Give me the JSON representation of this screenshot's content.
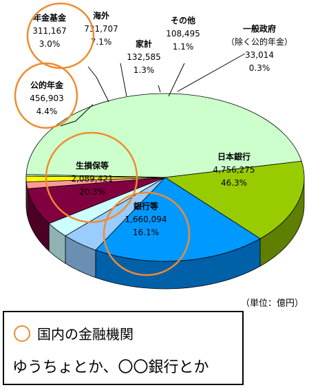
{
  "chart_data": {
    "type": "pie",
    "unit_label": "（単位：億円）",
    "slices": [
      {
        "name": "日本銀行",
        "value": "4,756,275",
        "percent": "46.3%",
        "color": "#ccffcc",
        "side": "#8fb38f",
        "highlight": false,
        "lines": [
          "日本銀行",
          "4,756,275",
          "46.3%"
        ]
      },
      {
        "name": "銀行等",
        "value": "1,660,094",
        "percent": "16.1%",
        "color": "#99cc00",
        "side": "#5f7f00",
        "highlight": true,
        "lines": [
          "銀行等",
          "1,660,094",
          "16.1%"
        ]
      },
      {
        "name": "生損保等",
        "value": "2,089,421",
        "percent": "20.3%",
        "color": "#0099ff",
        "side": "#0060a8",
        "highlight": true,
        "lines": [
          "生損保等",
          "2,089,421",
          "20.3%"
        ]
      },
      {
        "name": "公的年金",
        "value": "456,903",
        "percent": "4.4%",
        "color": "#99ccff",
        "side": "#6a8fb3",
        "highlight": true,
        "lines": [
          "公的年金",
          "456,903",
          "4.4%"
        ]
      },
      {
        "name": "年金基金",
        "value": "311,167",
        "percent": "3.0%",
        "color": "#ccffff",
        "side": "#8fb3b3",
        "highlight": true,
        "lines": [
          "年金基金",
          "311,167",
          "3.0%"
        ]
      },
      {
        "name": "海外",
        "value": "731,707",
        "percent": "7.1%",
        "color": "#800040",
        "side": "#4d0026",
        "highlight": false,
        "lines": [
          "海外",
          "731,707",
          "7.1%"
        ]
      },
      {
        "name": "家計",
        "value": "132,585",
        "percent": "1.3%",
        "color": "#ff9999",
        "side": "#b36b6b",
        "highlight": false,
        "lines": [
          "家計",
          "132,585",
          "1.3%"
        ]
      },
      {
        "name": "その他",
        "value": "108,495",
        "percent": "1.1%",
        "color": "#ffff00",
        "side": "#b3b300",
        "highlight": false,
        "lines": [
          "その他",
          "108,495",
          "1.1%"
        ]
      },
      {
        "name": "一般政府（除く公的年金）",
        "value": "33,014",
        "percent": "0.3%",
        "color": "#ccffcc",
        "side": "#8fb38f",
        "highlight": false,
        "lines": [
          "一般政府",
          "（除く公的年金）",
          "33,014",
          "0.3%"
        ]
      }
    ],
    "highlight_color": "#f08a30"
  },
  "legend": {
    "circle_label": "国内の金融機関",
    "note": "ゆうちょとか、〇〇銀行とか"
  }
}
